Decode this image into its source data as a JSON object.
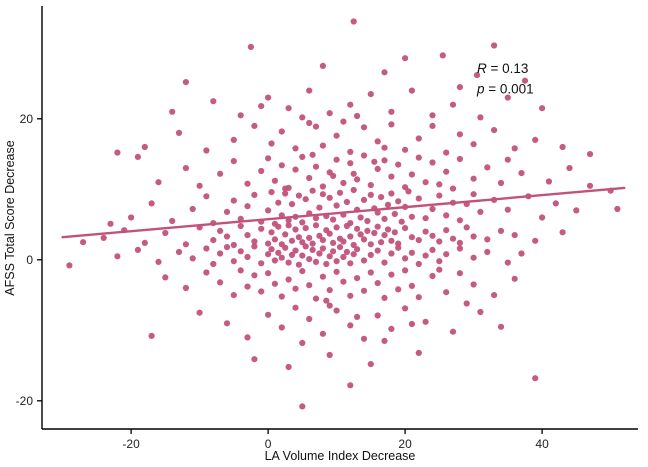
{
  "figure": {
    "title": "",
    "stat_annotation": [
      "R = 0.13",
      "p = 0.001"
    ]
  },
  "chart_data": {
    "type": "scatter",
    "title": "",
    "xlabel": "LA Volume Index Decrease",
    "ylabel": "AFSS Total Score Decrease",
    "xlim": [
      -33,
      54
    ],
    "ylim": [
      -24,
      36
    ],
    "x_ticks": [
      -20,
      0,
      20,
      40
    ],
    "y_ticks": [
      -20,
      0,
      20
    ],
    "grid": false,
    "legend": "none",
    "point_color": "#c2527b",
    "line_color": "#c2527b",
    "axis_color": "#000000",
    "annotation": {
      "x": 30.5,
      "y_r": 26.5,
      "y_p": 23.6,
      "r_var": "R",
      "r_rest": " = 0.13",
      "p_var": "p",
      "p_rest": " = 0.001"
    },
    "regression_line": {
      "x1": -30,
      "y1": 3.2,
      "x2": 52,
      "y2": 10.2
    },
    "points": [
      [
        12.5,
        33.8
      ],
      [
        33,
        30.4
      ],
      [
        -2.5,
        30.2
      ],
      [
        25.5,
        29
      ],
      [
        20,
        28.6
      ],
      [
        8,
        27.5
      ],
      [
        30.5,
        26.2
      ],
      [
        -12,
        25.2
      ],
      [
        17,
        26.6
      ],
      [
        37.5,
        25.4
      ],
      [
        -14,
        21
      ],
      [
        -8,
        22.5
      ],
      [
        -4,
        20.5
      ],
      [
        0,
        23
      ],
      [
        3,
        21.5
      ],
      [
        6,
        24
      ],
      [
        9,
        20.8
      ],
      [
        12,
        22
      ],
      [
        15,
        23.5
      ],
      [
        18,
        21
      ],
      [
        21,
        24
      ],
      [
        24,
        20.5
      ],
      [
        27,
        22
      ],
      [
        31,
        20.2
      ],
      [
        35,
        23
      ],
      [
        40,
        21.5
      ],
      [
        5,
        20.2
      ],
      [
        -1,
        21.8
      ],
      [
        13,
        20.4
      ],
      [
        28,
        24.5
      ],
      [
        -18,
        16
      ],
      [
        -13,
        18
      ],
      [
        -9,
        15.5
      ],
      [
        -5,
        17
      ],
      [
        -2,
        19
      ],
      [
        0.5,
        16.5
      ],
      [
        2,
        18.2
      ],
      [
        4,
        15.8
      ],
      [
        6,
        19.4
      ],
      [
        8,
        16.2
      ],
      [
        10,
        17.6
      ],
      [
        12,
        15.3
      ],
      [
        14,
        18.8
      ],
      [
        16,
        16.8
      ],
      [
        18,
        19.2
      ],
      [
        20,
        15.6
      ],
      [
        22,
        17.2
      ],
      [
        24,
        19
      ],
      [
        26,
        15.2
      ],
      [
        28,
        17.8
      ],
      [
        30,
        16.4
      ],
      [
        33,
        18.4
      ],
      [
        36,
        15.8
      ],
      [
        39,
        17
      ],
      [
        43,
        16
      ],
      [
        47,
        15
      ],
      [
        -22,
        15.2
      ],
      [
        7,
        18.9
      ],
      [
        17,
        15.9
      ],
      [
        11,
        19.6
      ],
      [
        -16,
        11
      ],
      [
        -12,
        13
      ],
      [
        -10,
        10.5
      ],
      [
        -7,
        12.2
      ],
      [
        -5,
        14
      ],
      [
        -3,
        10.8
      ],
      [
        -1,
        12.6
      ],
      [
        0,
        14.4
      ],
      [
        1,
        11.2
      ],
      [
        2,
        13.4
      ],
      [
        3,
        10.2
      ],
      [
        4,
        12.8
      ],
      [
        5,
        14.6
      ],
      [
        6,
        11.6
      ],
      [
        7,
        13.2
      ],
      [
        8,
        10.4
      ],
      [
        9,
        12.4
      ],
      [
        10,
        14.2
      ],
      [
        11,
        10.9
      ],
      [
        12,
        13.7
      ],
      [
        13,
        11.4
      ],
      [
        14,
        14.8
      ],
      [
        15,
        10.6
      ],
      [
        16,
        12.9
      ],
      [
        17,
        14.1
      ],
      [
        18,
        11.8
      ],
      [
        19,
        13.5
      ],
      [
        20,
        10.3
      ],
      [
        21,
        12.1
      ],
      [
        22,
        14.5
      ],
      [
        23,
        11
      ],
      [
        24,
        13.8
      ],
      [
        25,
        10.7
      ],
      [
        26,
        12.5
      ],
      [
        28,
        14.3
      ],
      [
        30,
        11.5
      ],
      [
        32,
        13.1
      ],
      [
        34,
        10.9
      ],
      [
        37,
        12.3
      ],
      [
        41,
        11.1
      ],
      [
        44,
        13
      ],
      [
        47,
        10.5
      ],
      [
        -19,
        14.6
      ],
      [
        2.5,
        10.1
      ],
      [
        6.5,
        14.9
      ],
      [
        9.5,
        11.9
      ],
      [
        15.5,
        13.9
      ],
      [
        27,
        10.1
      ],
      [
        35,
        14.2
      ],
      [
        12.5,
        12.2
      ],
      [
        -20,
        6
      ],
      [
        -17,
        8
      ],
      [
        -14,
        5.5
      ],
      [
        -11,
        7.2
      ],
      [
        -9,
        9
      ],
      [
        -8,
        5.2
      ],
      [
        -6,
        6.8
      ],
      [
        -5,
        8.4
      ],
      [
        -4,
        5.8
      ],
      [
        -3,
        7.6
      ],
      [
        -2,
        9.2
      ],
      [
        -1,
        5.4
      ],
      [
        0,
        7
      ],
      [
        0.5,
        9.6
      ],
      [
        1,
        5.1
      ],
      [
        1.5,
        8.1
      ],
      [
        2,
        6.3
      ],
      [
        2.5,
        9.4
      ],
      [
        3,
        5.6
      ],
      [
        3.5,
        7.9
      ],
      [
        4,
        6.1
      ],
      [
        4.5,
        9.1
      ],
      [
        5,
        5.3
      ],
      [
        5.5,
        8.6
      ],
      [
        6,
        6.6
      ],
      [
        6.5,
        9.8
      ],
      [
        7,
        5.9
      ],
      [
        7.5,
        7.4
      ],
      [
        8,
        9.3
      ],
      [
        8.5,
        6.2
      ],
      [
        9,
        8.8
      ],
      [
        9.5,
        5.7
      ],
      [
        10,
        7.7
      ],
      [
        10.5,
        9.5
      ],
      [
        11,
        6.4
      ],
      [
        11.5,
        8.2
      ],
      [
        12,
        5.2
      ],
      [
        12.5,
        9.9
      ],
      [
        13,
        7.1
      ],
      [
        13.5,
        6
      ],
      [
        14,
        8.5
      ],
      [
        14.5,
        5.5
      ],
      [
        15,
        9.2
      ],
      [
        15.5,
        7.3
      ],
      [
        16,
        6.7
      ],
      [
        16.5,
        8.9
      ],
      [
        17,
        5.8
      ],
      [
        17.5,
        7.8
      ],
      [
        18,
        9.4
      ],
      [
        18.5,
        6.5
      ],
      [
        19,
        8.3
      ],
      [
        19.5,
        5.4
      ],
      [
        20,
        7.5
      ],
      [
        20.5,
        9.7
      ],
      [
        21,
        6.1
      ],
      [
        22,
        8.7
      ],
      [
        23,
        5.9
      ],
      [
        24,
        7.2
      ],
      [
        25,
        9.1
      ],
      [
        26,
        6.3
      ],
      [
        27,
        8.1
      ],
      [
        28,
        5.6
      ],
      [
        29,
        7.9
      ],
      [
        30,
        9.3
      ],
      [
        31,
        6.8
      ],
      [
        33,
        8.5
      ],
      [
        35,
        7.1
      ],
      [
        38,
        9
      ],
      [
        40,
        6
      ],
      [
        42,
        8
      ],
      [
        45,
        7
      ],
      [
        50,
        9.8
      ],
      [
        51,
        7.2
      ],
      [
        -23,
        5.1
      ],
      [
        -24,
        3.1
      ],
      [
        -21,
        4.2
      ],
      [
        -18,
        2.4
      ],
      [
        -15,
        3.8
      ],
      [
        -12,
        2.2
      ],
      [
        -10,
        4.6
      ],
      [
        -8,
        2.8
      ],
      [
        -7,
        4.1
      ],
      [
        -6,
        3.3
      ],
      [
        -5,
        2.1
      ],
      [
        -4,
        4.8
      ],
      [
        -3,
        3.5
      ],
      [
        -2,
        2.6
      ],
      [
        -1,
        4.4
      ],
      [
        0,
        2.3
      ],
      [
        0.5,
        3.9
      ],
      [
        1,
        2.9
      ],
      [
        1.5,
        4.7
      ],
      [
        2,
        2.2
      ],
      [
        2.5,
        3.6
      ],
      [
        3,
        4.9
      ],
      [
        3.5,
        2.7
      ],
      [
        4,
        4.3
      ],
      [
        4.5,
        3.2
      ],
      [
        5,
        2.5
      ],
      [
        5.5,
        4.5
      ],
      [
        6,
        3.1
      ],
      [
        6.5,
        2.3
      ],
      [
        7,
        4.9
      ],
      [
        7.5,
        3.4
      ],
      [
        8,
        2.8
      ],
      [
        8.5,
        4.2
      ],
      [
        9,
        3.7
      ],
      [
        9.5,
        2.4
      ],
      [
        10,
        4.6
      ],
      [
        10.5,
        3
      ],
      [
        11,
        2.6
      ],
      [
        11.5,
        4.8
      ],
      [
        12,
        3.3
      ],
      [
        12.5,
        2.1
      ],
      [
        13,
        4.4
      ],
      [
        13.5,
        3.6
      ],
      [
        14,
        2.9
      ],
      [
        14.5,
        4.1
      ],
      [
        15,
        2.2
      ],
      [
        15.5,
        3.8
      ],
      [
        16,
        4.7
      ],
      [
        16.5,
        2.5
      ],
      [
        17,
        3.5
      ],
      [
        17.5,
        4.3
      ],
      [
        18,
        2.7
      ],
      [
        18.5,
        3.9
      ],
      [
        19,
        2.3
      ],
      [
        20,
        4.5
      ],
      [
        21,
        3.2
      ],
      [
        22,
        2.8
      ],
      [
        23,
        4
      ],
      [
        24,
        3.4
      ],
      [
        25,
        2.6
      ],
      [
        26,
        4.2
      ],
      [
        27,
        3
      ],
      [
        28,
        2.4
      ],
      [
        29,
        4.6
      ],
      [
        30,
        3.3
      ],
      [
        32,
        2.9
      ],
      [
        34,
        4.1
      ],
      [
        36,
        3.5
      ],
      [
        39,
        2.7
      ],
      [
        43,
        3.9
      ],
      [
        -27,
        2.5
      ],
      [
        -29,
        -0.8
      ],
      [
        -22,
        0.5
      ],
      [
        -19,
        1.4
      ],
      [
        -16,
        -0.3
      ],
      [
        -13,
        1.1
      ],
      [
        -11,
        0.2
      ],
      [
        -9,
        1.6
      ],
      [
        -8,
        -0.6
      ],
      [
        -7,
        0.9
      ],
      [
        -6,
        1.8
      ],
      [
        -5,
        -0.2
      ],
      [
        -4,
        1.2
      ],
      [
        -3,
        0.4
      ],
      [
        -2,
        1.9
      ],
      [
        -1,
        -0.5
      ],
      [
        0,
        0.8
      ],
      [
        0.5,
        1.5
      ],
      [
        1,
        -0.1
      ],
      [
        1.5,
        1
      ],
      [
        2,
        0.3
      ],
      [
        2.5,
        1.7
      ],
      [
        3,
        -0.4
      ],
      [
        3.5,
        0.7
      ],
      [
        4,
        1.3
      ],
      [
        4.5,
        -0.7
      ],
      [
        5,
        0.6
      ],
      [
        5.5,
        1.9
      ],
      [
        6,
        0.1
      ],
      [
        6.5,
        1.4
      ],
      [
        7,
        -0.3
      ],
      [
        7.5,
        0.9
      ],
      [
        8,
        1.6
      ],
      [
        8.5,
        -0.6
      ],
      [
        9,
        0.5
      ],
      [
        9.5,
        1.2
      ],
      [
        10,
        -0.2
      ],
      [
        10.5,
        1.8
      ],
      [
        11,
        0.4
      ],
      [
        11.5,
        1.1
      ],
      [
        12,
        -0.5
      ],
      [
        12.5,
        0.8
      ],
      [
        13,
        1.5
      ],
      [
        14,
        -0.1
      ],
      [
        15,
        0.7
      ],
      [
        16,
        1.3
      ],
      [
        17,
        -0.4
      ],
      [
        18,
        0.9
      ],
      [
        19,
        1.7
      ],
      [
        20,
        0.2
      ],
      [
        21,
        1
      ],
      [
        22,
        -0.6
      ],
      [
        23,
        0.6
      ],
      [
        24,
        1.4
      ],
      [
        25,
        -0.2
      ],
      [
        26,
        0.8
      ],
      [
        28,
        1.6
      ],
      [
        30,
        0.3
      ],
      [
        32,
        1.1
      ],
      [
        35,
        -0.4
      ],
      [
        37,
        0.9
      ],
      [
        -15,
        -2.5
      ],
      [
        -12,
        -4
      ],
      [
        -9,
        -1.8
      ],
      [
        -7,
        -3.2
      ],
      [
        -5,
        -5
      ],
      [
        -4,
        -1.5
      ],
      [
        -3,
        -3.8
      ],
      [
        -2,
        -2.2
      ],
      [
        -1,
        -4.5
      ],
      [
        0,
        -1.9
      ],
      [
        1,
        -3.4
      ],
      [
        2,
        -5.2
      ],
      [
        3,
        -2.8
      ],
      [
        4,
        -4.1
      ],
      [
        5,
        -1.6
      ],
      [
        6,
        -3.6
      ],
      [
        7,
        -5.5
      ],
      [
        8,
        -2.4
      ],
      [
        9,
        -4.3
      ],
      [
        10,
        -1.7
      ],
      [
        11,
        -3.1
      ],
      [
        12,
        -5.1
      ],
      [
        13,
        -2.6
      ],
      [
        14,
        -4.4
      ],
      [
        15,
        -1.8
      ],
      [
        16,
        -3.3
      ],
      [
        17,
        -5.4
      ],
      [
        18,
        -2.1
      ],
      [
        19,
        -4.2
      ],
      [
        20,
        -1.5
      ],
      [
        21,
        -3.7
      ],
      [
        22,
        -5.3
      ],
      [
        24,
        -2.3
      ],
      [
        26,
        -4.6
      ],
      [
        28,
        -1.9
      ],
      [
        30,
        -3.5
      ],
      [
        33,
        -5
      ],
      [
        36,
        -2.7
      ],
      [
        25,
        -1.4
      ],
      [
        8.5,
        -5.8
      ],
      [
        -10,
        -7.5
      ],
      [
        -6,
        -9
      ],
      [
        -3,
        -11
      ],
      [
        0,
        -7.8
      ],
      [
        2,
        -9.6
      ],
      [
        4,
        -6.8
      ],
      [
        6,
        -8.4
      ],
      [
        8,
        -10.5
      ],
      [
        10,
        -7.2
      ],
      [
        12,
        -9.3
      ],
      [
        14,
        -11.2
      ],
      [
        16,
        -7.9
      ],
      [
        18,
        -9.8
      ],
      [
        20,
        -6.9
      ],
      [
        23,
        -8.8
      ],
      [
        27,
        -10.2
      ],
      [
        31,
        -7.4
      ],
      [
        -17,
        -10.8
      ],
      [
        5,
        -11.8
      ],
      [
        9,
        -6.5
      ],
      [
        13,
        -8.1
      ],
      [
        17,
        -11.5
      ],
      [
        21,
        -9.1
      ],
      [
        29,
        -6.2
      ],
      [
        34,
        -9.5
      ],
      [
        5,
        -20.8
      ],
      [
        12,
        -17.8
      ],
      [
        39,
        -16.8
      ],
      [
        -2,
        -14.1
      ],
      [
        3,
        -15.2
      ],
      [
        9,
        -13.5
      ],
      [
        15,
        -14.8
      ],
      [
        22,
        -13.2
      ]
    ]
  }
}
